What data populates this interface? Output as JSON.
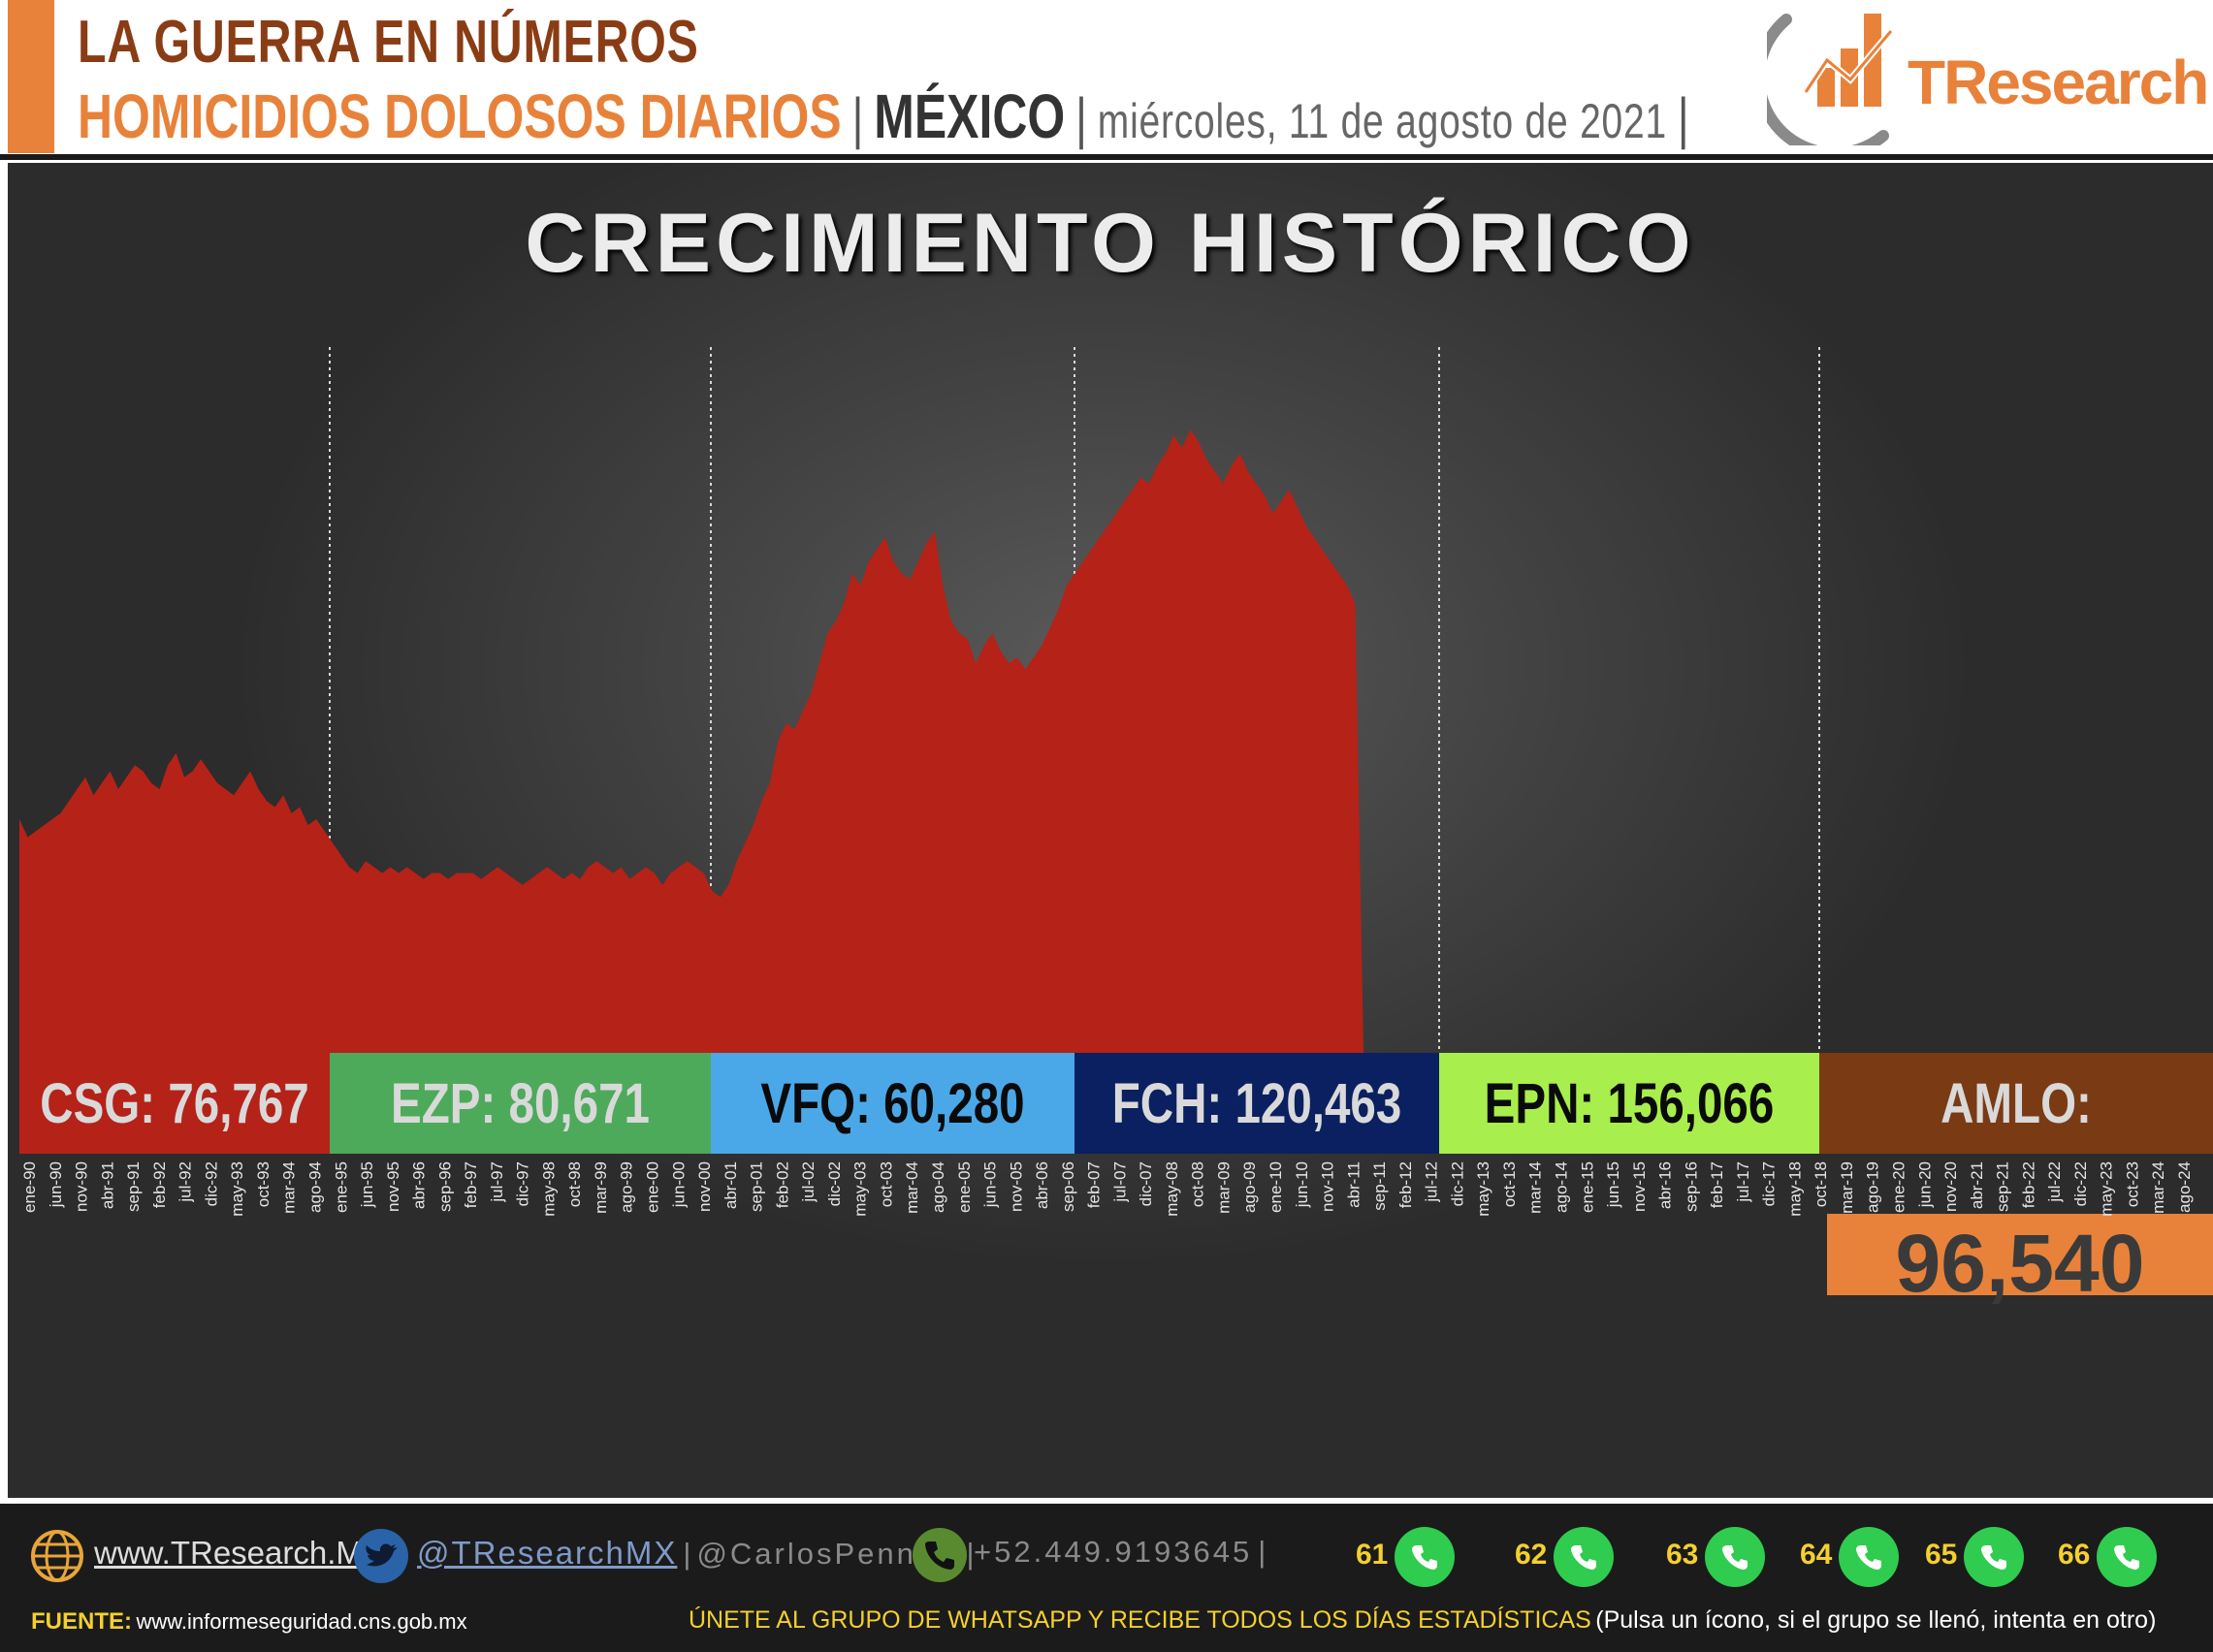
{
  "header": {
    "title": "LA GUERRA EN NÚMEROS",
    "subtitle": "HOMICIDIOS DOLOSOS DIARIOS",
    "country": "MÉXICO",
    "date": "miércoles, 11 de agosto de 2021",
    "logo_text_tr": "TR",
    "logo_text_rest": "esearch"
  },
  "chart_data": {
    "type": "area",
    "title": "CRECIMIENTO HISTÓRICO",
    "x_tick_labels": [
      "ene-90",
      "jun-90",
      "nov-90",
      "abr-91",
      "sep-91",
      "feb-92",
      "jul-92",
      "dic-92",
      "may-93",
      "oct-93",
      "mar-94",
      "ago-94",
      "ene-95",
      "jun-95",
      "nov-95",
      "abr-96",
      "sep-96",
      "feb-97",
      "jul-97",
      "dic-97",
      "may-98",
      "oct-98",
      "mar-99",
      "ago-99",
      "ene-00",
      "jun-00",
      "nov-00",
      "abr-01",
      "sep-01",
      "feb-02",
      "jul-02",
      "dic-02",
      "may-03",
      "oct-03",
      "mar-04",
      "ago-04",
      "ene-05",
      "jun-05",
      "nov-05",
      "abr-06",
      "sep-06",
      "feb-07",
      "jul-07",
      "dic-07",
      "may-08",
      "oct-08",
      "mar-09",
      "ago-09",
      "ene-10",
      "jun-10",
      "nov-10",
      "abr-11",
      "sep-11",
      "feb-12",
      "jul-12",
      "dic-12",
      "may-13",
      "oct-13",
      "mar-14",
      "ago-14",
      "ene-15",
      "jun-15",
      "nov-15",
      "abr-16",
      "sep-16",
      "feb-17",
      "jul-17",
      "dic-17",
      "may-18",
      "oct-18",
      "mar-19",
      "ago-19",
      "ene-20",
      "jun-20",
      "nov-20",
      "abr-21",
      "sep-21",
      "feb-22",
      "jul-22",
      "dic-22",
      "may-23",
      "oct-23",
      "mar-24",
      "ago-24"
    ],
    "series": [
      {
        "values": [
          39,
          36,
          37,
          38,
          39,
          40,
          42,
          44,
          46,
          43,
          45,
          47,
          44,
          46,
          48,
          47,
          45,
          44,
          48,
          50,
          46,
          47,
          49,
          47,
          45,
          44,
          43,
          45,
          47,
          44,
          42,
          41,
          43,
          40,
          41,
          38,
          39,
          37,
          35,
          33,
          31,
          30,
          32,
          31,
          30,
          31,
          30,
          31,
          30,
          29,
          30,
          30,
          29,
          30,
          30,
          30,
          29,
          30,
          31,
          30,
          29,
          28,
          29,
          30,
          31,
          30,
          29,
          30,
          29,
          31,
          32,
          31,
          30,
          31,
          29,
          30,
          31,
          30,
          28,
          30,
          31,
          32,
          31,
          30,
          27,
          26,
          28,
          32,
          35,
          38,
          42,
          45,
          52,
          55,
          54,
          57,
          60,
          65,
          70,
          72,
          75,
          80,
          78,
          82,
          84,
          86,
          82,
          80,
          79,
          82,
          85,
          87,
          78,
          72,
          70,
          69,
          65,
          68,
          70,
          67,
          65,
          66,
          64,
          66,
          68,
          71,
          74,
          78,
          80,
          82,
          84,
          86,
          88,
          90,
          92,
          94,
          96,
          95,
          98,
          100,
          103,
          101,
          104,
          102,
          99,
          97,
          95,
          98,
          100,
          97,
          95,
          93,
          90,
          92,
          94,
          91,
          88,
          86,
          84,
          82,
          80,
          78,
          75,
          0
        ]
      }
    ],
    "segments": [
      {
        "label": "CSG: 76,767",
        "color": "#b52218",
        "text_color": "#d9d9d9"
      },
      {
        "label": "EZP: 80,671",
        "color": "#4daa5a",
        "text_color": "#d9d9d9"
      },
      {
        "label": "VFQ: 60,280",
        "color": "#4aa8e8",
        "text_color": "#0a0a0a"
      },
      {
        "label": "FCH:  120,463",
        "color": "#0b2060",
        "text_color": "#d9d9d9"
      },
      {
        "label": "EPN: 156,066",
        "color": "#a8ee4c",
        "text_color": "#0a0a0a"
      },
      {
        "label": "AMLO:",
        "color": "#7a3a14",
        "text_color": "#d9d9d9"
      }
    ],
    "current_total": "96,540",
    "area_color": "#b52218",
    "accent_color": "#e8823a"
  },
  "footer": {
    "website": "www.TResearch.Mx",
    "twitter": "@TResearchMX",
    "personal_handle": "@CarlosPennaC",
    "phone": "+52.449.9193645",
    "whatsapp_groups": [
      "61",
      "62",
      "63",
      "64",
      "65",
      "66"
    ],
    "fuente_label": "FUENTE:",
    "fuente_url": "www.informeseguridad.cns.gob.mx",
    "join_text": "ÚNETE AL GRUPO DE WHATSAPP Y RECIBE TODOS LOS DÍAS ESTADÍSTICAS",
    "join_note": "(Pulsa un ícono, si el grupo se llenó, intenta en otro)"
  }
}
